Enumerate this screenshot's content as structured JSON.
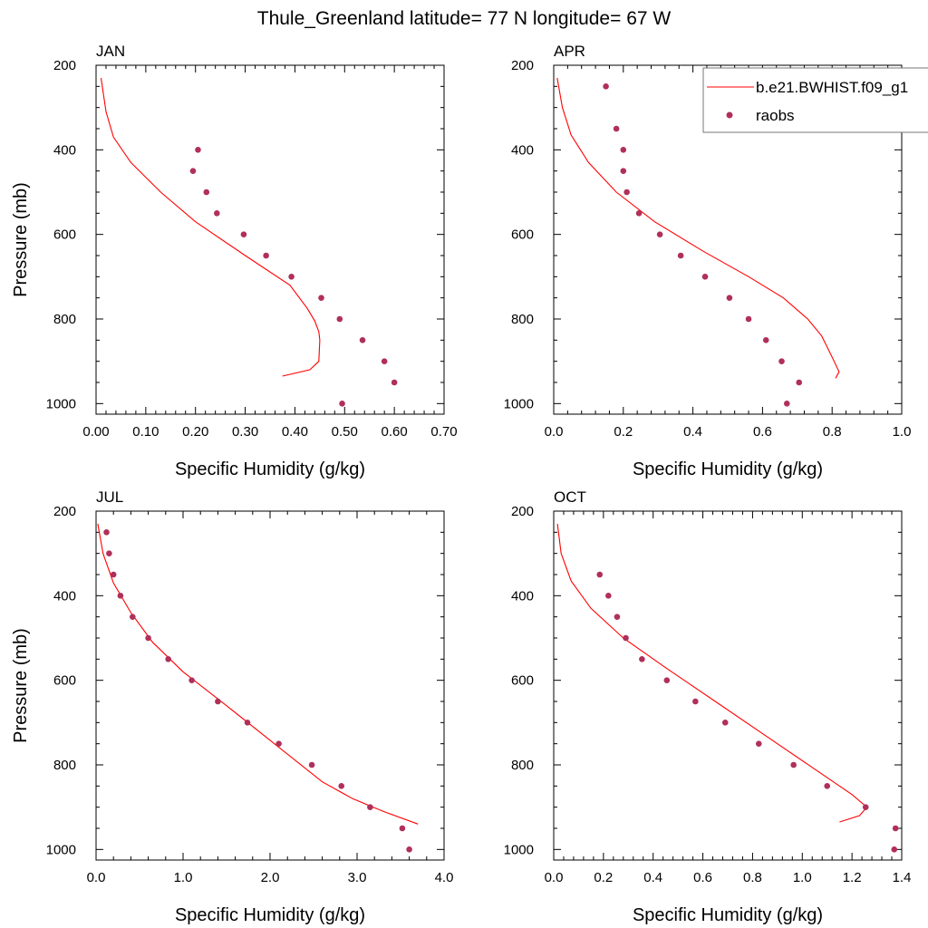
{
  "title": "Thule_Greenland  latitude= 77 N longitude= 67 W",
  "colors": {
    "model": "#ff0000",
    "obs": "#b0305a"
  },
  "legend": {
    "model_label": "b.e21.BWHIST.f09_g1",
    "obs_label": "raobs"
  },
  "chart_data": [
    {
      "type": "line",
      "panel": "JAN",
      "xlabel": "Specific Humidity (g/kg)",
      "ylabel": "Pressure (mb)",
      "xlim": [
        0,
        0.7
      ],
      "xticks": [
        0,
        0.1,
        0.2,
        0.3,
        0.4,
        0.5,
        0.6,
        0.7
      ],
      "xtick_labels": [
        "0.00",
        "0.10",
        "0.20",
        "0.30",
        "0.40",
        "0.50",
        "0.60",
        "0.70"
      ],
      "ylim": [
        200,
        1025
      ],
      "yticks": [
        200,
        400,
        600,
        800,
        1000
      ],
      "ytick_labels": [
        "200",
        "400",
        "600",
        "800",
        "1000"
      ],
      "y_inverted": true,
      "series": [
        {
          "name": "b.e21.BWHIST.f09_g1",
          "type": "line",
          "x": [
            0.01,
            0.02,
            0.035,
            0.07,
            0.13,
            0.2,
            0.3,
            0.39,
            0.425,
            0.44,
            0.448,
            0.45,
            0.448,
            0.43,
            0.375
          ],
          "y": [
            230,
            310,
            370,
            430,
            500,
            570,
            650,
            720,
            775,
            805,
            830,
            850,
            900,
            920,
            935
          ]
        },
        {
          "name": "raobs",
          "type": "scatter",
          "x": [
            0.205,
            0.195,
            0.222,
            0.243,
            0.297,
            0.342,
            0.393,
            0.453,
            0.49,
            0.536,
            0.58,
            0.6,
            0.495
          ],
          "y": [
            400,
            450,
            500,
            550,
            600,
            650,
            700,
            750,
            800,
            850,
            900,
            950,
            1000
          ]
        }
      ]
    },
    {
      "type": "line",
      "panel": "APR",
      "xlabel": "Specific Humidity (g/kg)",
      "ylabel": "",
      "xlim": [
        0,
        1.0
      ],
      "xticks": [
        0,
        0.2,
        0.4,
        0.6,
        0.8,
        1.0
      ],
      "xtick_labels": [
        "0.0",
        "0.2",
        "0.4",
        "0.6",
        "0.8",
        "1.0"
      ],
      "ylim": [
        200,
        1025
      ],
      "yticks": [
        200,
        400,
        600,
        800,
        1000
      ],
      "ytick_labels": [
        "200",
        "400",
        "600",
        "800",
        "1000"
      ],
      "y_inverted": true,
      "series": [
        {
          "name": "b.e21.BWHIST.f09_g1",
          "type": "line",
          "x": [
            0.01,
            0.025,
            0.05,
            0.1,
            0.18,
            0.29,
            0.43,
            0.56,
            0.66,
            0.73,
            0.77,
            0.8,
            0.82,
            0.81
          ],
          "y": [
            230,
            300,
            365,
            430,
            500,
            570,
            640,
            700,
            750,
            800,
            840,
            890,
            925,
            940
          ]
        },
        {
          "name": "raobs",
          "type": "scatter",
          "x": [
            0.15,
            0.18,
            0.2,
            0.2,
            0.21,
            0.245,
            0.305,
            0.365,
            0.435,
            0.505,
            0.56,
            0.61,
            0.655,
            0.705,
            0.67
          ],
          "y": [
            250,
            350,
            400,
            450,
            500,
            550,
            600,
            650,
            700,
            750,
            800,
            850,
            900,
            950,
            1000
          ]
        }
      ]
    },
    {
      "type": "line",
      "panel": "JUL",
      "xlabel": "Specific Humidity (g/kg)",
      "ylabel": "Pressure (mb)",
      "xlim": [
        0,
        4.0
      ],
      "xticks": [
        0,
        1,
        2,
        3,
        4
      ],
      "xtick_labels": [
        "0.0",
        "1.0",
        "2.0",
        "3.0",
        "4.0"
      ],
      "ylim": [
        200,
        1025
      ],
      "yticks": [
        200,
        400,
        600,
        800,
        1000
      ],
      "ytick_labels": [
        "200",
        "400",
        "600",
        "800",
        "1000"
      ],
      "y_inverted": true,
      "series": [
        {
          "name": "b.e21.BWHIST.f09_g1",
          "type": "line",
          "x": [
            0.02,
            0.08,
            0.2,
            0.4,
            0.65,
            1.0,
            1.5,
            2.05,
            2.6,
            2.95,
            3.3,
            3.7
          ],
          "y": [
            230,
            300,
            370,
            440,
            510,
            580,
            660,
            750,
            840,
            880,
            910,
            940
          ]
        },
        {
          "name": "raobs",
          "type": "scatter",
          "x": [
            0.12,
            0.15,
            0.2,
            0.28,
            0.42,
            0.6,
            0.83,
            1.1,
            1.4,
            1.74,
            2.1,
            2.48,
            2.82,
            3.15,
            3.52,
            3.6
          ],
          "y": [
            250,
            300,
            350,
            400,
            450,
            500,
            550,
            600,
            650,
            700,
            750,
            800,
            850,
            900,
            950,
            1000
          ]
        }
      ]
    },
    {
      "type": "line",
      "panel": "OCT",
      "xlabel": "Specific Humidity (g/kg)",
      "ylabel": "",
      "xlim": [
        0,
        1.4
      ],
      "xticks": [
        0,
        0.2,
        0.4,
        0.6,
        0.8,
        1.0,
        1.2,
        1.4
      ],
      "xtick_labels": [
        "0.0",
        "0.2",
        "0.4",
        "0.6",
        "0.8",
        "1.0",
        "1.2",
        "1.4"
      ],
      "ylim": [
        200,
        1025
      ],
      "yticks": [
        200,
        400,
        600,
        800,
        1000
      ],
      "ytick_labels": [
        "200",
        "400",
        "600",
        "800",
        "1000"
      ],
      "y_inverted": true,
      "series": [
        {
          "name": "b.e21.BWHIST.f09_g1",
          "type": "line",
          "x": [
            0.015,
            0.03,
            0.07,
            0.15,
            0.28,
            0.45,
            0.65,
            0.85,
            1.05,
            1.2,
            1.26,
            1.23,
            1.15
          ],
          "y": [
            230,
            300,
            365,
            430,
            500,
            570,
            650,
            730,
            810,
            870,
            900,
            920,
            935
          ]
        },
        {
          "name": "raobs",
          "type": "scatter",
          "x": [
            0.185,
            0.22,
            0.255,
            0.29,
            0.355,
            0.455,
            0.57,
            0.69,
            0.825,
            0.965,
            1.1,
            1.255,
            1.375,
            1.37
          ],
          "y": [
            350,
            400,
            450,
            500,
            550,
            600,
            650,
            700,
            750,
            800,
            850,
            900,
            950,
            1000
          ]
        }
      ]
    }
  ]
}
